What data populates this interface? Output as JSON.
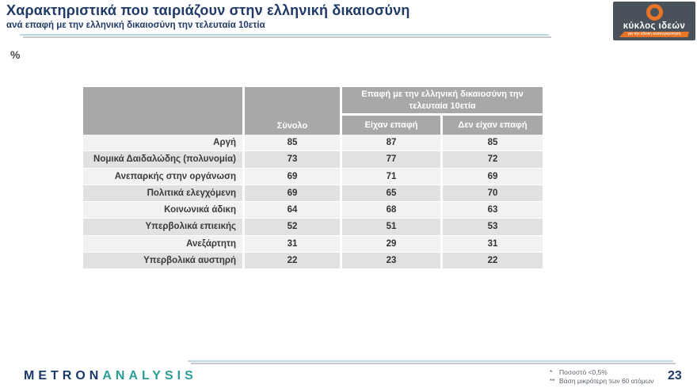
{
  "slide": {
    "title": "Χαρακτηριστικά που ταιριάζουν στην ελληνική δικαιοσύνη",
    "subtitle": "ανά επαφή με την ελληνική δικαιοσύνη την τελευταία 10ετία",
    "unit_label": "%",
    "page_number": "23"
  },
  "brand_logo": {
    "name": "κύκλος ιδεών",
    "tagline": "για την εθνική ανασυγκρότηση",
    "background": "#49515a",
    "accent_orange": "#e87426"
  },
  "table": {
    "col_group_header": "Επαφή με την ελληνική δικαιοσύνη την τελευταία 10ετία",
    "total_header": "Σύνολο",
    "sub_headers": [
      "Είχαν επαφή",
      "Δεν είχαν επαφή"
    ],
    "rows": [
      {
        "label": "Αργή",
        "total": "85",
        "contact": "87",
        "no_contact": "85"
      },
      {
        "label": "Νομικά Δαιδαλώδης (πολυνομία)",
        "total": "73",
        "contact": "77",
        "no_contact": "72"
      },
      {
        "label": "Ανεπαρκής στην οργάνωση",
        "total": "69",
        "contact": "71",
        "no_contact": "69"
      },
      {
        "label": "Πολιτικά ελεγχόμενη",
        "total": "69",
        "contact": "65",
        "no_contact": "70"
      },
      {
        "label": "Κοινωνικά άδικη",
        "total": "64",
        "contact": "68",
        "no_contact": "63"
      },
      {
        "label": "Υπερβολικά επιεικής",
        "total": "52",
        "contact": "51",
        "no_contact": "53"
      },
      {
        "label": "Ανεξάρτητη",
        "total": "31",
        "contact": "29",
        "no_contact": "31"
      },
      {
        "label": "Υπερβολικά αυστηρή",
        "total": "22",
        "contact": "23",
        "no_contact": "22"
      }
    ]
  },
  "chart_data": {
    "type": "table",
    "title": "Χαρακτηριστικά που ταιριάζουν στην ελληνική δικαιοσύνη",
    "subtitle": "ανά επαφή με την ελληνική δικαιοσύνη την τελευταία 10ετία",
    "unit": "%",
    "categories": [
      "Αργή",
      "Νομικά Δαιδαλώδης (πολυνομία)",
      "Ανεπαρκής στην οργάνωση",
      "Πολιτικά ελεγχόμενη",
      "Κοινωνικά άδικη",
      "Υπερβολικά επιεικής",
      "Ανεξάρτητη",
      "Υπερβολικά αυστηρή"
    ],
    "series": [
      {
        "name": "Σύνολο",
        "values": [
          85,
          73,
          69,
          69,
          64,
          52,
          31,
          22
        ]
      },
      {
        "name": "Είχαν επαφή",
        "values": [
          87,
          77,
          71,
          65,
          68,
          51,
          29,
          23
        ]
      },
      {
        "name": "Δεν είχαν επαφή",
        "values": [
          85,
          72,
          69,
          70,
          63,
          53,
          31,
          22
        ]
      }
    ]
  },
  "footer": {
    "logo_part1": "METRON",
    "logo_part2": "ANALYSIS",
    "footnotes": [
      {
        "marker": "*",
        "text": "Ποσοστό <0,5%"
      },
      {
        "marker": "**",
        "text": "Βάση μικρότερη των 60 ατόμων"
      }
    ]
  },
  "colors": {
    "title_navy": "#1f3a67",
    "header_gray": "#a8a8a8",
    "row_light": "#f2f2f2",
    "row_dark": "#e1e1e1",
    "accent_teal_line": "#b9d8e0",
    "metron_navy": "#1b3a6b",
    "metron_teal": "#2a9d96",
    "logo_orange": "#e87426"
  }
}
